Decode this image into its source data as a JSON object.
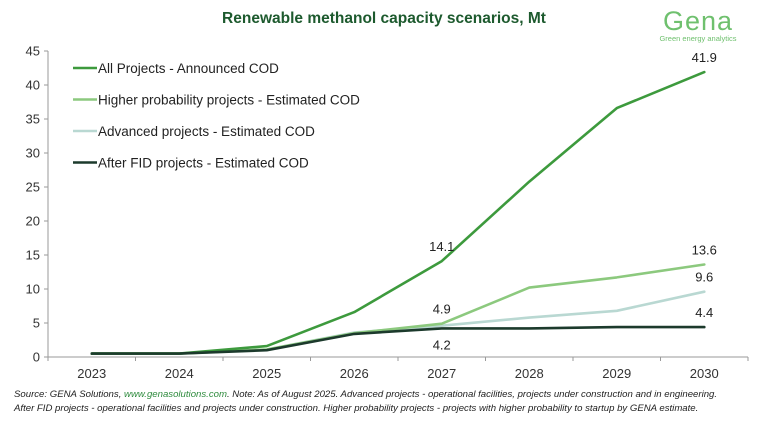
{
  "header": {
    "title": "Renewable methanol capacity scenarios, Mt",
    "logo_word": "Gena",
    "logo_tagline": "Green energy analytics"
  },
  "footnote": {
    "source_label": "Source: GENA Solutions, ",
    "source_link": "www.genasolutions.com",
    "line1_rest": ". Note: As of August 2025. Advanced projects - operational facilities, projects under construction and in engineering.",
    "line2": "After FID projects - operational facilities and projects under construction. Higher probability projects - projects with higher probability to startup by GENA estimate."
  },
  "chart_data": {
    "type": "line",
    "title": "Renewable methanol capacity scenarios, Mt",
    "categories": [
      "2023",
      "2024",
      "2025",
      "2026",
      "2027",
      "2028",
      "2029",
      "2030"
    ],
    "ylim": [
      0,
      45
    ],
    "yticks": [
      0,
      5,
      10,
      15,
      20,
      25,
      30,
      35,
      40,
      45
    ],
    "grid": false,
    "legend_position": "top-left",
    "series": [
      {
        "name": "All Projects - Announced COD",
        "color": "#3d9a3d",
        "values": [
          0.5,
          0.5,
          1.6,
          6.6,
          14.1,
          25.8,
          36.6,
          41.9
        ],
        "data_labels": [
          {
            "index": 4,
            "text": "14.1",
            "pos": "above"
          },
          {
            "index": 7,
            "text": "41.9",
            "pos": "above"
          }
        ]
      },
      {
        "name": "Higher probability projects - Estimated COD",
        "color": "#8cc97e",
        "values": [
          0.5,
          0.5,
          1.1,
          3.5,
          4.9,
          10.2,
          11.7,
          13.6
        ],
        "data_labels": [
          {
            "index": 4,
            "text": "4.9",
            "pos": "above"
          },
          {
            "index": 7,
            "text": "13.6",
            "pos": "above"
          }
        ]
      },
      {
        "name": "Advanced projects - Estimated COD",
        "color": "#b9d8d2",
        "values": [
          0.5,
          0.5,
          1.1,
          3.6,
          4.6,
          5.8,
          6.8,
          9.6
        ],
        "data_labels": [
          {
            "index": 7,
            "text": "9.6",
            "pos": "above"
          }
        ]
      },
      {
        "name": "After FID projects - Estimated COD",
        "color": "#1c3a2c",
        "values": [
          0.5,
          0.5,
          1.0,
          3.4,
          4.2,
          4.2,
          4.4,
          4.4
        ],
        "data_labels": [
          {
            "index": 4,
            "text": "4.2",
            "pos": "below"
          },
          {
            "index": 7,
            "text": "4.4",
            "pos": "above"
          }
        ]
      }
    ]
  }
}
